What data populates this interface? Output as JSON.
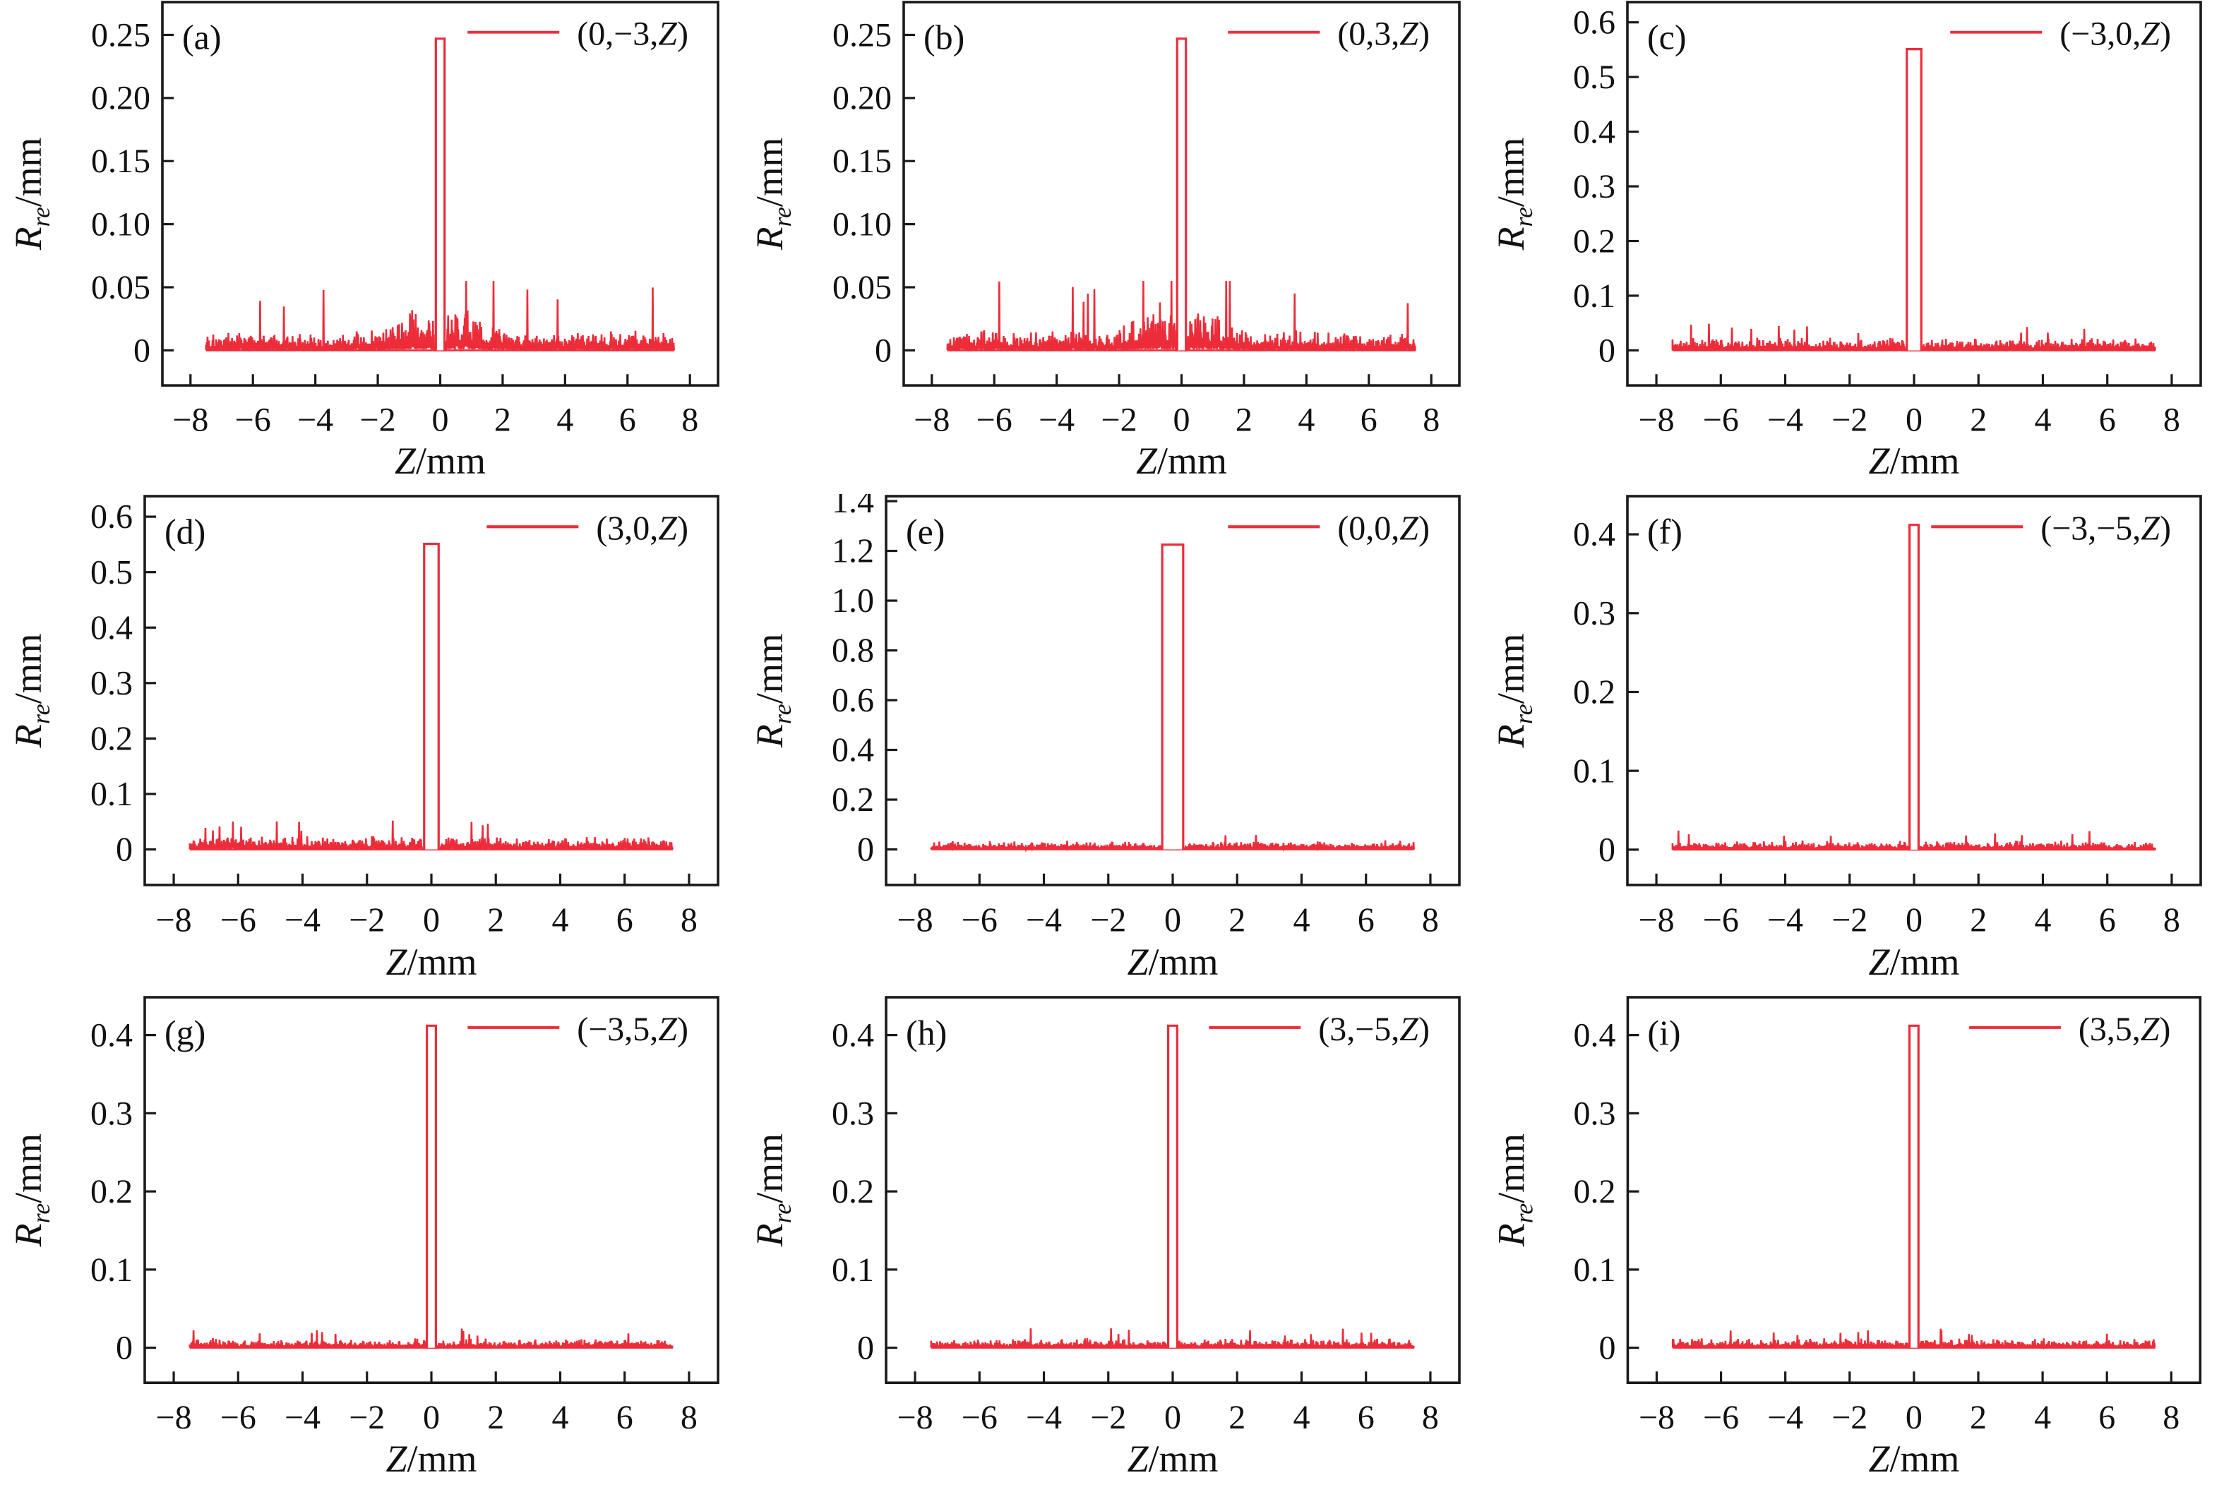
{
  "figure": {
    "background": "#ffffff",
    "curve_color": "#ed2c3a",
    "axis_color": "#1a1a1a",
    "xlabel": {
      "var": "Z",
      "unit": "/mm"
    },
    "ylabel": {
      "var": "R",
      "sub": "re",
      "unit": "/mm"
    },
    "x_tick_values": [
      -8,
      -6,
      -4,
      -2,
      0,
      2,
      4,
      6,
      8
    ],
    "x_tick_labels": [
      "−8",
      "−6",
      "−4",
      "−2",
      "0",
      "2",
      "4",
      "6",
      "8"
    ]
  },
  "chart_data": [
    {
      "id": "a",
      "type": "line",
      "letter": "(a)",
      "legend": {
        "pre": "(0,−3,",
        "var": "Z",
        "post": ")"
      },
      "xlim": [
        -8.9,
        8.9
      ],
      "ylim": [
        -0.0278,
        0.276
      ],
      "x_range": [
        -7.5,
        7.5
      ],
      "y_ticks": [
        {
          "v": 0,
          "label": "0"
        },
        {
          "v": 0.05,
          "label": "0.05"
        },
        {
          "v": 0.1,
          "label": "0.10"
        },
        {
          "v": 0.15,
          "label": "0.15"
        },
        {
          "v": 0.2,
          "label": "0.20"
        },
        {
          "v": 0.25,
          "label": "0.25"
        }
      ],
      "peak": {
        "center": 0,
        "width": 0.28,
        "height": 0.247
      },
      "noise": {
        "base": 0.012,
        "spike": 0.055,
        "center_bulge": true
      },
      "margin_left": 230,
      "seed": 101
    },
    {
      "id": "b",
      "type": "line",
      "letter": "(b)",
      "legend": {
        "pre": "(0,3,",
        "var": "Z",
        "post": ")"
      },
      "xlim": [
        -8.9,
        8.9
      ],
      "ylim": [
        -0.0278,
        0.276
      ],
      "x_range": [
        -7.5,
        7.5
      ],
      "y_ticks": [
        {
          "v": 0,
          "label": "0"
        },
        {
          "v": 0.05,
          "label": "0.05"
        },
        {
          "v": 0.1,
          "label": "0.10"
        },
        {
          "v": 0.15,
          "label": "0.15"
        },
        {
          "v": 0.2,
          "label": "0.20"
        },
        {
          "v": 0.25,
          "label": "0.25"
        }
      ],
      "peak": {
        "center": 0,
        "width": 0.28,
        "height": 0.247
      },
      "noise": {
        "base": 0.012,
        "spike": 0.055,
        "center_bulge": true
      },
      "margin_left": 230,
      "seed": 202
    },
    {
      "id": "c",
      "type": "line",
      "letter": "(c)",
      "legend": {
        "pre": "(−3,0,",
        "var": "Z",
        "post": ")"
      },
      "xlim": [
        -8.9,
        8.9
      ],
      "ylim": [
        -0.0641,
        0.637
      ],
      "x_range": [
        -7.5,
        7.5
      ],
      "y_ticks": [
        {
          "v": 0,
          "label": "0"
        },
        {
          "v": 0.1,
          "label": "0.1"
        },
        {
          "v": 0.2,
          "label": "0.2"
        },
        {
          "v": 0.3,
          "label": "0.3"
        },
        {
          "v": 0.4,
          "label": "0.4"
        },
        {
          "v": 0.5,
          "label": "0.5"
        },
        {
          "v": 0.6,
          "label": "0.6"
        }
      ],
      "peak": {
        "center": 0,
        "width": 0.45,
        "height": 0.551
      },
      "noise": {
        "base": 0.018,
        "spike": 0.052,
        "center_bulge": false
      },
      "margin_left": 205,
      "seed": 303
    },
    {
      "id": "d",
      "type": "line",
      "letter": "(d)",
      "legend": {
        "pre": "(3,0,",
        "var": "Z",
        "post": ")"
      },
      "xlim": [
        -8.9,
        8.9
      ],
      "ylim": [
        -0.0641,
        0.637
      ],
      "x_range": [
        -7.5,
        7.5
      ],
      "y_ticks": [
        {
          "v": 0,
          "label": "0"
        },
        {
          "v": 0.1,
          "label": "0.1"
        },
        {
          "v": 0.2,
          "label": "0.2"
        },
        {
          "v": 0.3,
          "label": "0.3"
        },
        {
          "v": 0.4,
          "label": "0.4"
        },
        {
          "v": 0.5,
          "label": "0.5"
        },
        {
          "v": 0.6,
          "label": "0.6"
        }
      ],
      "peak": {
        "center": 0,
        "width": 0.45,
        "height": 0.551
      },
      "noise": {
        "base": 0.018,
        "spike": 0.052,
        "center_bulge": false
      },
      "margin_left": 205,
      "seed": 404
    },
    {
      "id": "e",
      "type": "line",
      "letter": "(e)",
      "legend": {
        "pre": "(0,0,",
        "var": "Z",
        "post": ")"
      },
      "xlim": [
        -8.9,
        8.9
      ],
      "ylim": [
        -0.143,
        1.42
      ],
      "x_range": [
        -7.5,
        7.5
      ],
      "y_ticks": [
        {
          "v": 0,
          "label": "0"
        },
        {
          "v": 0.2,
          "label": "0.2"
        },
        {
          "v": 0.4,
          "label": "0.4"
        },
        {
          "v": 0.6,
          "label": "0.6"
        },
        {
          "v": 0.8,
          "label": "0.8"
        },
        {
          "v": 1.0,
          "label": "1.0"
        },
        {
          "v": 1.2,
          "label": "1.2"
        },
        {
          "v": 1.4,
          "label": "1.4"
        }
      ],
      "peak": {
        "center": 0,
        "width": 0.65,
        "height": 1.225
      },
      "noise": {
        "base": 0.025,
        "spike": 0.06,
        "center_bulge": false
      },
      "margin_left": 205,
      "seed": 505
    },
    {
      "id": "f",
      "type": "line",
      "letter": "(f)",
      "legend": {
        "pre": "(−3,−5,",
        "var": "Z",
        "post": ")"
      },
      "xlim": [
        -8.9,
        8.9
      ],
      "ylim": [
        -0.0448,
        0.4484
      ],
      "x_range": [
        -7.5,
        7.5
      ],
      "y_ticks": [
        {
          "v": 0,
          "label": "0"
        },
        {
          "v": 0.1,
          "label": "0.1"
        },
        {
          "v": 0.2,
          "label": "0.2"
        },
        {
          "v": 0.3,
          "label": "0.3"
        },
        {
          "v": 0.4,
          "label": "0.4"
        }
      ],
      "peak": {
        "center": 0,
        "width": 0.28,
        "height": 0.412
      },
      "noise": {
        "base": 0.009,
        "spike": 0.025,
        "center_bulge": false
      },
      "margin_left": 205,
      "seed": 606
    },
    {
      "id": "g",
      "type": "line",
      "letter": "(g)",
      "legend": {
        "pre": "(−3,5,",
        "var": "Z",
        "post": ")"
      },
      "xlim": [
        -8.9,
        8.9
      ],
      "ylim": [
        -0.0448,
        0.4484
      ],
      "x_range": [
        -7.5,
        7.5
      ],
      "y_ticks": [
        {
          "v": 0,
          "label": "0"
        },
        {
          "v": 0.1,
          "label": "0.1"
        },
        {
          "v": 0.2,
          "label": "0.2"
        },
        {
          "v": 0.3,
          "label": "0.3"
        },
        {
          "v": 0.4,
          "label": "0.4"
        }
      ],
      "peak": {
        "center": 0,
        "width": 0.28,
        "height": 0.412
      },
      "noise": {
        "base": 0.009,
        "spike": 0.025,
        "center_bulge": false
      },
      "margin_left": 205,
      "seed": 707
    },
    {
      "id": "h",
      "type": "line",
      "letter": "(h)",
      "legend": {
        "pre": "(3,−5,",
        "var": "Z",
        "post": ")"
      },
      "xlim": [
        -8.9,
        8.9
      ],
      "ylim": [
        -0.0448,
        0.4484
      ],
      "x_range": [
        -7.5,
        7.5
      ],
      "y_ticks": [
        {
          "v": 0,
          "label": "0"
        },
        {
          "v": 0.1,
          "label": "0.1"
        },
        {
          "v": 0.2,
          "label": "0.2"
        },
        {
          "v": 0.3,
          "label": "0.3"
        },
        {
          "v": 0.4,
          "label": "0.4"
        }
      ],
      "peak": {
        "center": 0,
        "width": 0.28,
        "height": 0.412
      },
      "noise": {
        "base": 0.009,
        "spike": 0.025,
        "center_bulge": false
      },
      "margin_left": 205,
      "seed": 808
    },
    {
      "id": "i",
      "type": "line",
      "letter": "(i)",
      "legend": {
        "pre": "(3,5,",
        "var": "Z",
        "post": ")"
      },
      "xlim": [
        -8.9,
        8.9
      ],
      "ylim": [
        -0.0448,
        0.4484
      ],
      "x_range": [
        -7.5,
        7.5
      ],
      "y_ticks": [
        {
          "v": 0,
          "label": "0"
        },
        {
          "v": 0.1,
          "label": "0.1"
        },
        {
          "v": 0.2,
          "label": "0.2"
        },
        {
          "v": 0.3,
          "label": "0.3"
        },
        {
          "v": 0.4,
          "label": "0.4"
        }
      ],
      "peak": {
        "center": 0,
        "width": 0.28,
        "height": 0.412
      },
      "noise": {
        "base": 0.009,
        "spike": 0.025,
        "center_bulge": false
      },
      "margin_left": 205,
      "seed": 909
    }
  ]
}
